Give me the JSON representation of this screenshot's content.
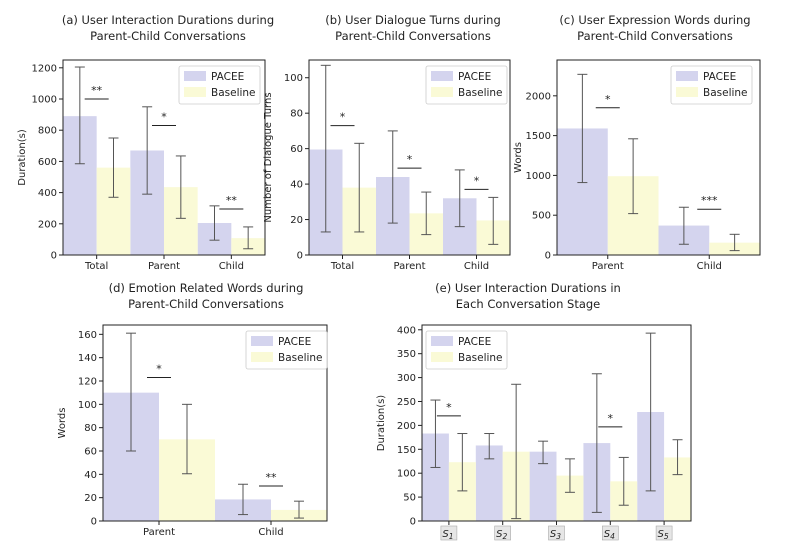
{
  "colors": {
    "pacee": "#d4d4ee",
    "baseline": "#fafad6",
    "err": "#555555",
    "legend_border": "#cccccc"
  },
  "chart_data": [
    {
      "type": "bar",
      "title_lines": [
        "(a) User Interaction Durations during",
        "Parent-Child Conversations"
      ],
      "ylabel": "Duration(s)",
      "ylim": [
        0,
        1250
      ],
      "yticks": [
        0,
        200,
        400,
        600,
        800,
        1000,
        1200
      ],
      "categories": [
        "Total",
        "Parent",
        "Child"
      ],
      "series": [
        {
          "name": "PACEE",
          "values": [
            890,
            670,
            205
          ],
          "err_low": [
            585,
            390,
            95
          ],
          "err_high": [
            1205,
            950,
            315
          ]
        },
        {
          "name": "Baseline",
          "values": [
            560,
            435,
            108
          ],
          "err_low": [
            370,
            235,
            40
          ],
          "err_high": [
            750,
            635,
            180
          ]
        }
      ],
      "significance": [
        {
          "category": 0,
          "y": 1000,
          "label": "**"
        },
        {
          "category": 1,
          "y": 830,
          "label": "*"
        },
        {
          "category": 2,
          "y": 295,
          "label": "**"
        }
      ],
      "legend": [
        "PACEE",
        "Baseline"
      ]
    },
    {
      "type": "bar",
      "title_lines": [
        "(b) User Dialogue Turns during",
        "Parent-Child Conversations"
      ],
      "ylabel": "Number of Dialogue Turns",
      "ylim": [
        0,
        110
      ],
      "yticks": [
        0,
        20,
        40,
        60,
        80,
        100
      ],
      "categories": [
        "Total",
        "Parent",
        "Child"
      ],
      "series": [
        {
          "name": "PACEE",
          "values": [
            59.5,
            44,
            32
          ],
          "err_low": [
            13,
            18,
            16
          ],
          "err_high": [
            107,
            70,
            48
          ]
        },
        {
          "name": "Baseline",
          "values": [
            38,
            23.5,
            19.5
          ],
          "err_low": [
            13,
            11.5,
            6
          ],
          "err_high": [
            63,
            35.5,
            32.5
          ]
        }
      ],
      "significance": [
        {
          "category": 0,
          "y": 73,
          "label": "*"
        },
        {
          "category": 1,
          "y": 49,
          "label": "*"
        },
        {
          "category": 2,
          "y": 37,
          "label": "*"
        }
      ],
      "legend": [
        "PACEE",
        "Baseline"
      ]
    },
    {
      "type": "bar",
      "title_lines": [
        "(c) User Expression Words during",
        "Parent-Child Conversations"
      ],
      "ylabel": "Words",
      "ylim": [
        0,
        2450
      ],
      "yticks": [
        0,
        500,
        1000,
        1500,
        2000
      ],
      "categories": [
        "Parent",
        "Child"
      ],
      "series": [
        {
          "name": "PACEE",
          "values": [
            1590,
            370
          ],
          "err_low": [
            910,
            135
          ],
          "err_high": [
            2270,
            600
          ]
        },
        {
          "name": "Baseline",
          "values": [
            990,
            155
          ],
          "err_low": [
            520,
            55
          ],
          "err_high": [
            1460,
            260
          ]
        }
      ],
      "significance": [
        {
          "category": 0,
          "y": 1850,
          "label": "*"
        },
        {
          "category": 1,
          "y": 575,
          "label": "***"
        }
      ],
      "legend": [
        "PACEE",
        "Baseline"
      ]
    },
    {
      "type": "bar",
      "title_lines": [
        "(d) Emotion Related Words during",
        "Parent-Child Conversations"
      ],
      "ylabel": "Words",
      "ylim": [
        0,
        168
      ],
      "yticks": [
        0,
        20,
        40,
        60,
        80,
        100,
        120,
        140,
        160
      ],
      "categories": [
        "Parent",
        "Child"
      ],
      "series": [
        {
          "name": "PACEE",
          "values": [
            110,
            18.5
          ],
          "err_low": [
            60,
            5.5
          ],
          "err_high": [
            161,
            31.5
          ]
        },
        {
          "name": "Baseline",
          "values": [
            70,
            9.5
          ],
          "err_low": [
            40.5,
            2.5
          ],
          "err_high": [
            100,
            17
          ]
        }
      ],
      "significance": [
        {
          "category": 0,
          "y": 123,
          "label": "*"
        },
        {
          "category": 1,
          "y": 30,
          "label": "**"
        }
      ],
      "legend": [
        "PACEE",
        "Baseline"
      ]
    },
    {
      "type": "bar",
      "title_lines": [
        "(e) User Interaction Durations in",
        "Each Conversation Stage"
      ],
      "ylabel": "Duration(s)",
      "ylim": [
        0,
        410
      ],
      "yticks": [
        0,
        50,
        100,
        150,
        200,
        250,
        300,
        350,
        400
      ],
      "categories": [
        "S1",
        "S2",
        "S3",
        "S4",
        "S5"
      ],
      "category_base": "S",
      "category_subs": [
        "1",
        "2",
        "3",
        "4",
        "5"
      ],
      "series": [
        {
          "name": "PACEE",
          "values": [
            183,
            158,
            145,
            163,
            228
          ],
          "err_low": [
            112,
            130,
            120,
            18,
            63
          ],
          "err_high": [
            253,
            183,
            167,
            308,
            393
          ]
        },
        {
          "name": "Baseline",
          "values": [
            123,
            145,
            95,
            83,
            133
          ],
          "err_low": [
            63,
            5,
            60,
            33,
            97
          ],
          "err_high": [
            183,
            286,
            130,
            133,
            170
          ]
        }
      ],
      "significance": [
        {
          "category": 0,
          "y": 220,
          "label": "*"
        },
        {
          "category": 3,
          "y": 197,
          "label": "*"
        }
      ],
      "legend": [
        "PACEE",
        "Baseline"
      ]
    }
  ]
}
